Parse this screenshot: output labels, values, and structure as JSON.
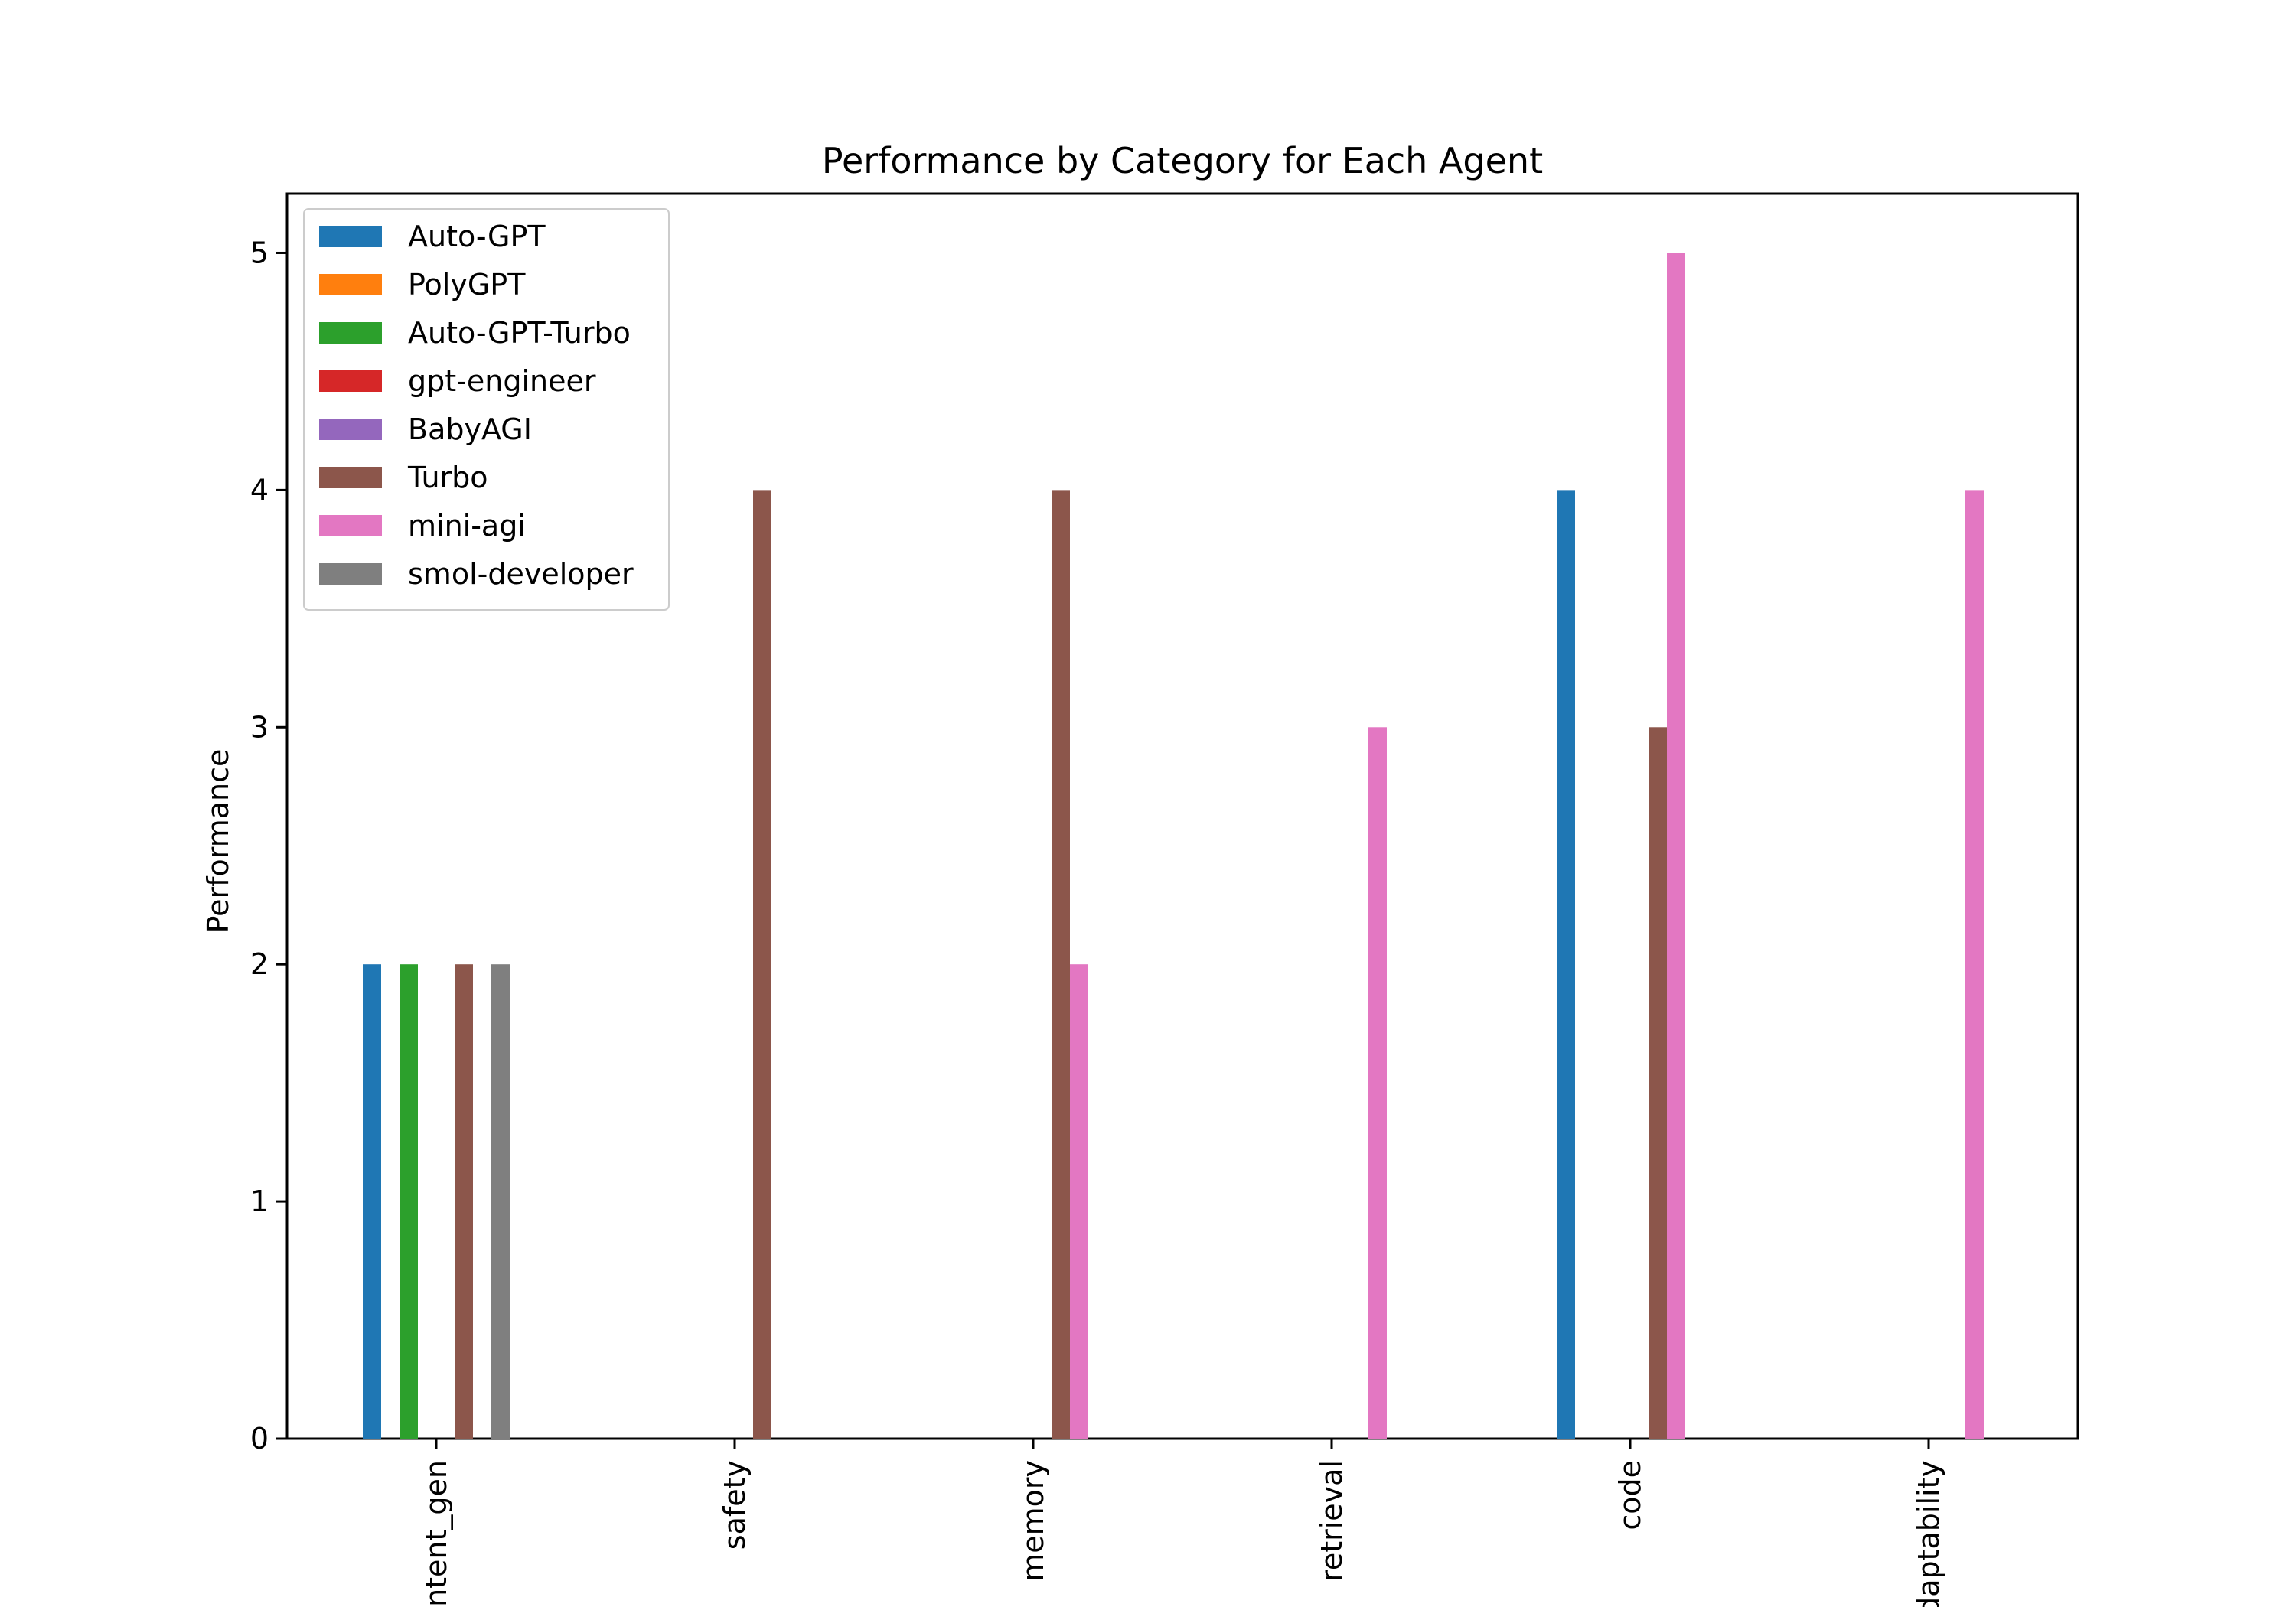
{
  "chart_data": {
    "type": "bar",
    "title": "Performance by Category for Each Agent",
    "xlabel": "",
    "ylabel": "Performance",
    "ylim": [
      0,
      5.25
    ],
    "yticks": [
      "0",
      "1",
      "2",
      "3",
      "4",
      "5"
    ],
    "categories": [
      "content_gen",
      "safety",
      "memory",
      "retrieval",
      "code",
      "adaptability"
    ],
    "legend_position": "top-left",
    "grid": false,
    "series": [
      {
        "name": "Auto-GPT",
        "color": "#1f77b4",
        "values": [
          2,
          0,
          0,
          0,
          4,
          0
        ]
      },
      {
        "name": "PolyGPT",
        "color": "#ff7f0e",
        "values": [
          0,
          0,
          0,
          0,
          0,
          0
        ]
      },
      {
        "name": "Auto-GPT-Turbo",
        "color": "#2ca02c",
        "values": [
          2,
          0,
          0,
          0,
          0,
          0
        ]
      },
      {
        "name": "gpt-engineer",
        "color": "#d62728",
        "values": [
          0,
          0,
          0,
          0,
          0,
          0
        ]
      },
      {
        "name": "BabyAGI",
        "color": "#9467bd",
        "values": [
          0,
          0,
          0,
          0,
          0,
          0
        ]
      },
      {
        "name": "Turbo",
        "color": "#8c564b",
        "values": [
          2,
          4,
          4,
          0,
          3,
          0
        ]
      },
      {
        "name": "mini-agi",
        "color": "#e377c2",
        "values": [
          0,
          0,
          2,
          3,
          5,
          4
        ]
      },
      {
        "name": "smol-developer",
        "color": "#7f7f7f",
        "values": [
          2,
          0,
          0,
          0,
          0,
          0
        ]
      }
    ]
  }
}
